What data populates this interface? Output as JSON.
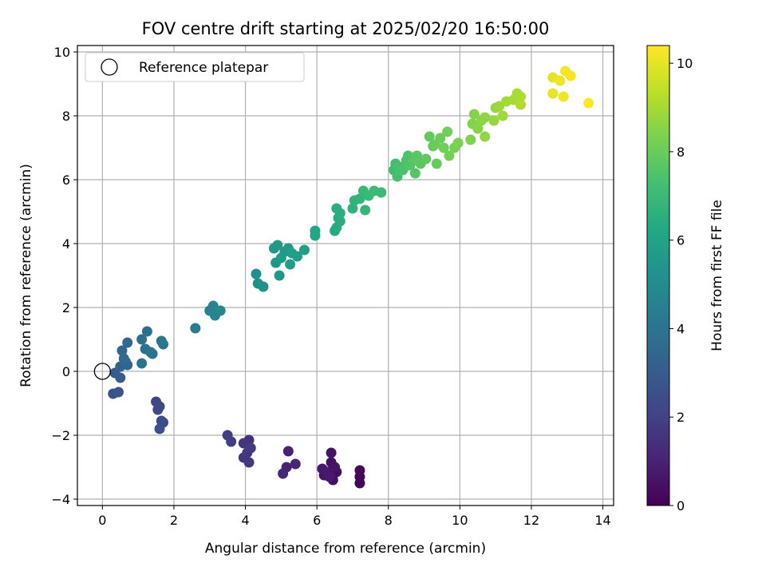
{
  "chart_data": {
    "type": "scatter",
    "title": "FOV centre drift starting at 2025/02/20 16:50:00",
    "xlabel": "Angular distance from reference (arcmin)",
    "ylabel": "Rotation from reference (arcmin)",
    "xlim": [
      -0.7,
      14.3
    ],
    "ylim": [
      -4.2,
      10.2
    ],
    "xticks": [
      0,
      2,
      4,
      6,
      8,
      10,
      12,
      14
    ],
    "yticks": [
      -4,
      -2,
      0,
      2,
      4,
      6,
      8,
      10
    ],
    "grid": true,
    "legend": {
      "location": "top-left",
      "entries": [
        "Reference platepar"
      ]
    },
    "reference_point": {
      "label": "Reference platepar",
      "x": 0,
      "y": 0
    },
    "colorbar": {
      "label": "Hours from first FF file",
      "min": 0,
      "max": 10.4,
      "ticks": [
        0,
        2,
        4,
        6,
        8,
        10
      ],
      "colormap": "viridis"
    },
    "points": [
      {
        "x": 7.2,
        "y": -3.5,
        "h": 0.1
      },
      {
        "x": 7.2,
        "y": -3.3,
        "h": 0.15
      },
      {
        "x": 7.2,
        "y": -3.1,
        "h": 0.2
      },
      {
        "x": 6.45,
        "y": -3.4,
        "h": 0.35
      },
      {
        "x": 6.55,
        "y": -3.15,
        "h": 0.4
      },
      {
        "x": 6.4,
        "y": -2.85,
        "h": 0.45
      },
      {
        "x": 6.4,
        "y": -2.55,
        "h": 0.5
      },
      {
        "x": 6.5,
        "y": -3.0,
        "h": 0.55
      },
      {
        "x": 6.2,
        "y": -3.25,
        "h": 0.6
      },
      {
        "x": 6.15,
        "y": -3.05,
        "h": 0.65
      },
      {
        "x": 6.3,
        "y": -3.15,
        "h": 0.7
      },
      {
        "x": 6.35,
        "y": -3.3,
        "h": 0.75
      },
      {
        "x": 5.2,
        "y": -2.5,
        "h": 1.0
      },
      {
        "x": 5.15,
        "y": -3.0,
        "h": 1.05
      },
      {
        "x": 5.4,
        "y": -2.9,
        "h": 1.1
      },
      {
        "x": 5.05,
        "y": -3.2,
        "h": 1.15
      },
      {
        "x": 4.1,
        "y": -2.15,
        "h": 1.5
      },
      {
        "x": 3.95,
        "y": -2.25,
        "h": 1.55
      },
      {
        "x": 4.05,
        "y": -2.55,
        "h": 1.6
      },
      {
        "x": 3.95,
        "y": -2.7,
        "h": 1.65
      },
      {
        "x": 4.1,
        "y": -2.85,
        "h": 1.7
      },
      {
        "x": 4.15,
        "y": -2.4,
        "h": 1.75
      },
      {
        "x": 3.5,
        "y": -2.0,
        "h": 1.9
      },
      {
        "x": 3.6,
        "y": -2.2,
        "h": 1.95
      },
      {
        "x": 1.5,
        "y": -0.95,
        "h": 2.2
      },
      {
        "x": 1.6,
        "y": -1.1,
        "h": 2.25
      },
      {
        "x": 1.55,
        "y": -1.2,
        "h": 2.3
      },
      {
        "x": 1.65,
        "y": -1.55,
        "h": 2.35
      },
      {
        "x": 1.7,
        "y": -1.6,
        "h": 2.4
      },
      {
        "x": 1.6,
        "y": -1.8,
        "h": 2.45
      },
      {
        "x": 0.3,
        "y": -0.7,
        "h": 2.7
      },
      {
        "x": 0.45,
        "y": -0.65,
        "h": 2.75
      },
      {
        "x": 0.35,
        "y": -0.05,
        "h": 3.0
      },
      {
        "x": 0.5,
        "y": -0.2,
        "h": 3.05
      },
      {
        "x": 0.5,
        "y": 0.15,
        "h": 3.3
      },
      {
        "x": 0.65,
        "y": 0.3,
        "h": 3.4
      },
      {
        "x": 0.7,
        "y": 0.2,
        "h": 3.45
      },
      {
        "x": 0.55,
        "y": 0.65,
        "h": 3.5
      },
      {
        "x": 0.7,
        "y": 0.9,
        "h": 3.55
      },
      {
        "x": 0.6,
        "y": 0.4,
        "h": 3.6
      },
      {
        "x": 1.1,
        "y": 1.0,
        "h": 3.75
      },
      {
        "x": 1.25,
        "y": 1.25,
        "h": 3.8
      },
      {
        "x": 1.2,
        "y": 0.7,
        "h": 3.85
      },
      {
        "x": 1.4,
        "y": 0.55,
        "h": 3.9
      },
      {
        "x": 1.1,
        "y": 0.25,
        "h": 3.95
      },
      {
        "x": 1.35,
        "y": 0.6,
        "h": 4.0
      },
      {
        "x": 1.65,
        "y": 0.95,
        "h": 4.05
      },
      {
        "x": 1.7,
        "y": 0.85,
        "h": 4.1
      },
      {
        "x": 2.6,
        "y": 1.35,
        "h": 4.4
      },
      {
        "x": 3.0,
        "y": 1.9,
        "h": 4.6
      },
      {
        "x": 3.1,
        "y": 2.05,
        "h": 4.65
      },
      {
        "x": 3.15,
        "y": 1.75,
        "h": 4.7
      },
      {
        "x": 3.3,
        "y": 1.9,
        "h": 4.75
      },
      {
        "x": 4.3,
        "y": 3.05,
        "h": 5.1
      },
      {
        "x": 4.35,
        "y": 2.75,
        "h": 5.15
      },
      {
        "x": 4.5,
        "y": 2.65,
        "h": 5.2
      },
      {
        "x": 4.85,
        "y": 3.4,
        "h": 5.4
      },
      {
        "x": 4.95,
        "y": 3.0,
        "h": 5.45
      },
      {
        "x": 4.8,
        "y": 3.85,
        "h": 5.5
      },
      {
        "x": 4.9,
        "y": 3.95,
        "h": 5.55
      },
      {
        "x": 5.1,
        "y": 3.75,
        "h": 5.6
      },
      {
        "x": 5.2,
        "y": 3.85,
        "h": 5.65
      },
      {
        "x": 5.0,
        "y": 3.55,
        "h": 5.7
      },
      {
        "x": 5.25,
        "y": 3.35,
        "h": 5.75
      },
      {
        "x": 5.45,
        "y": 3.6,
        "h": 5.8
      },
      {
        "x": 5.65,
        "y": 3.8,
        "h": 5.85
      },
      {
        "x": 5.3,
        "y": 3.7,
        "h": 5.9
      },
      {
        "x": 5.95,
        "y": 4.4,
        "h": 6.1
      },
      {
        "x": 5.95,
        "y": 4.25,
        "h": 6.15
      },
      {
        "x": 6.5,
        "y": 4.4,
        "h": 6.3
      },
      {
        "x": 6.55,
        "y": 4.5,
        "h": 6.35
      },
      {
        "x": 6.6,
        "y": 4.8,
        "h": 6.4
      },
      {
        "x": 6.65,
        "y": 4.7,
        "h": 6.45
      },
      {
        "x": 6.55,
        "y": 5.1,
        "h": 6.5
      },
      {
        "x": 6.65,
        "y": 4.95,
        "h": 6.55
      },
      {
        "x": 7.0,
        "y": 5.1,
        "h": 6.7
      },
      {
        "x": 7.05,
        "y": 5.35,
        "h": 6.75
      },
      {
        "x": 7.2,
        "y": 5.4,
        "h": 6.8
      },
      {
        "x": 7.35,
        "y": 5.05,
        "h": 6.85
      },
      {
        "x": 7.3,
        "y": 5.65,
        "h": 6.9
      },
      {
        "x": 7.45,
        "y": 5.5,
        "h": 6.95
      },
      {
        "x": 7.6,
        "y": 5.65,
        "h": 7.0
      },
      {
        "x": 7.8,
        "y": 5.6,
        "h": 7.05
      },
      {
        "x": 8.15,
        "y": 6.3,
        "h": 7.2
      },
      {
        "x": 8.2,
        "y": 6.5,
        "h": 7.25
      },
      {
        "x": 8.25,
        "y": 6.1,
        "h": 7.3
      },
      {
        "x": 8.3,
        "y": 6.4,
        "h": 7.35
      },
      {
        "x": 8.4,
        "y": 6.3,
        "h": 7.4
      },
      {
        "x": 8.5,
        "y": 6.6,
        "h": 7.45
      },
      {
        "x": 8.55,
        "y": 6.75,
        "h": 7.5
      },
      {
        "x": 8.6,
        "y": 6.45,
        "h": 7.55
      },
      {
        "x": 8.7,
        "y": 6.6,
        "h": 7.6
      },
      {
        "x": 8.75,
        "y": 6.2,
        "h": 7.65
      },
      {
        "x": 8.8,
        "y": 6.75,
        "h": 7.7
      },
      {
        "x": 8.9,
        "y": 6.5,
        "h": 7.75
      },
      {
        "x": 9.05,
        "y": 6.65,
        "h": 7.8
      },
      {
        "x": 9.15,
        "y": 7.35,
        "h": 7.85
      },
      {
        "x": 9.25,
        "y": 7.05,
        "h": 7.9
      },
      {
        "x": 9.35,
        "y": 6.5,
        "h": 7.95
      },
      {
        "x": 9.3,
        "y": 7.1,
        "h": 8.0
      },
      {
        "x": 9.45,
        "y": 7.3,
        "h": 8.05
      },
      {
        "x": 9.55,
        "y": 7.0,
        "h": 8.1
      },
      {
        "x": 9.65,
        "y": 7.5,
        "h": 8.15
      },
      {
        "x": 9.7,
        "y": 6.75,
        "h": 8.2
      },
      {
        "x": 9.85,
        "y": 7.0,
        "h": 8.25
      },
      {
        "x": 9.95,
        "y": 7.15,
        "h": 8.3
      },
      {
        "x": 10.3,
        "y": 7.25,
        "h": 8.4
      },
      {
        "x": 10.35,
        "y": 7.75,
        "h": 8.45
      },
      {
        "x": 10.4,
        "y": 8.05,
        "h": 8.5
      },
      {
        "x": 10.5,
        "y": 7.6,
        "h": 8.55
      },
      {
        "x": 10.6,
        "y": 7.85,
        "h": 8.6
      },
      {
        "x": 10.7,
        "y": 7.95,
        "h": 8.65
      },
      {
        "x": 10.7,
        "y": 7.35,
        "h": 8.7
      },
      {
        "x": 10.95,
        "y": 7.85,
        "h": 8.75
      },
      {
        "x": 11.0,
        "y": 8.25,
        "h": 8.8
      },
      {
        "x": 11.1,
        "y": 8.3,
        "h": 8.85
      },
      {
        "x": 11.2,
        "y": 8.0,
        "h": 8.9
      },
      {
        "x": 11.3,
        "y": 8.45,
        "h": 8.95
      },
      {
        "x": 11.5,
        "y": 8.5,
        "h": 9.0
      },
      {
        "x": 11.6,
        "y": 8.7,
        "h": 9.05
      },
      {
        "x": 11.7,
        "y": 8.6,
        "h": 9.1
      },
      {
        "x": 11.7,
        "y": 8.35,
        "h": 9.15
      },
      {
        "x": 12.6,
        "y": 9.2,
        "h": 10.0
      },
      {
        "x": 12.6,
        "y": 8.7,
        "h": 10.05
      },
      {
        "x": 12.8,
        "y": 9.1,
        "h": 10.1
      },
      {
        "x": 12.9,
        "y": 8.6,
        "h": 10.15
      },
      {
        "x": 12.95,
        "y": 9.4,
        "h": 10.2
      },
      {
        "x": 13.1,
        "y": 9.25,
        "h": 10.25
      },
      {
        "x": 13.6,
        "y": 8.4,
        "h": 10.35
      }
    ]
  }
}
